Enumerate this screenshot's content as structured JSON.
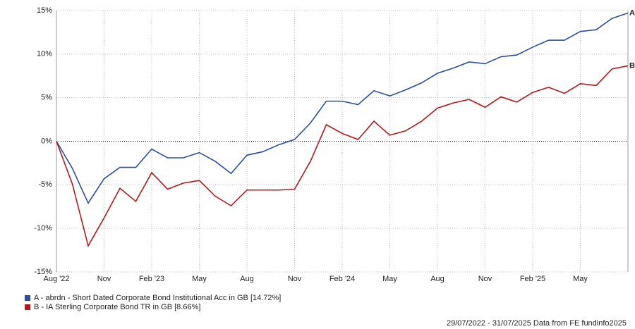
{
  "chart_data": {
    "type": "line",
    "categories": [
      "Aug '22",
      null,
      null,
      "Nov",
      null,
      null,
      "Feb '23",
      null,
      null,
      "May",
      null,
      null,
      "Aug",
      null,
      null,
      "Nov",
      null,
      null,
      "Feb '24",
      null,
      null,
      "May",
      null,
      null,
      "Aug",
      null,
      null,
      "Nov",
      null,
      null,
      "Feb '25",
      null,
      null,
      "May",
      null,
      null,
      null
    ],
    "series": [
      {
        "name": "A - abrdn - Short Dated Corporate Bond Institutional Acc in GB [14.72%]",
        "end_label": "A",
        "color": "#2b4fa0",
        "values": [
          0,
          -3.1,
          -7.1,
          -4.3,
          -3.0,
          -3.0,
          -0.9,
          -1.9,
          -1.9,
          -1.3,
          -2.3,
          -3.7,
          -1.6,
          -1.2,
          -0.4,
          0.2,
          2.1,
          4.6,
          4.6,
          4.2,
          5.8,
          5.2,
          5.9,
          6.7,
          7.8,
          8.4,
          9.1,
          8.9,
          9.7,
          9.9,
          10.8,
          11.6,
          11.6,
          12.6,
          12.8,
          14.1,
          14.72
        ]
      },
      {
        "name": "B - IA Sterling Corporate Bond TR in GB [8.66%]",
        "end_label": "B",
        "color": "#b3191c",
        "values": [
          0,
          -4.9,
          -12.0,
          -8.8,
          -5.4,
          -6.9,
          -3.6,
          -5.5,
          -4.8,
          -4.5,
          -6.3,
          -7.4,
          -5.6,
          -5.6,
          -5.6,
          -5.5,
          -2.3,
          1.9,
          0.9,
          0.2,
          2.3,
          0.7,
          1.2,
          2.3,
          3.8,
          4.4,
          4.8,
          3.9,
          5.1,
          4.5,
          5.6,
          6.2,
          5.5,
          6.6,
          6.4,
          8.3,
          8.66
        ]
      }
    ],
    "ylim": [
      -15,
      15
    ],
    "yticks": [
      {
        "value": -15,
        "label": "-15%"
      },
      {
        "value": -10,
        "label": "-10%"
      },
      {
        "value": -5,
        "label": "-5%"
      },
      {
        "value": 0,
        "label": "0%"
      },
      {
        "value": 5,
        "label": "5%"
      },
      {
        "value": 10,
        "label": "10%"
      },
      {
        "value": 15,
        "label": "15%"
      }
    ],
    "grid": true,
    "footnote": "29/07/2022 - 31/07/2025 Data from FE fundinfo2025"
  }
}
